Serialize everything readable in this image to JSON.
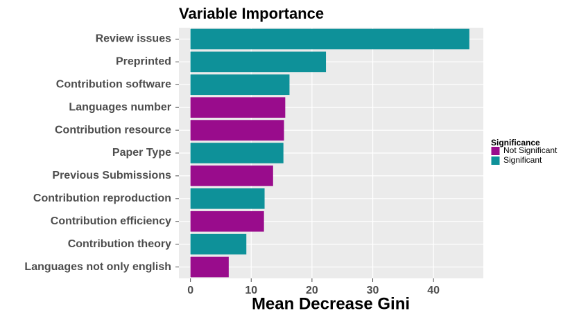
{
  "chart_data": {
    "type": "bar",
    "orientation": "horizontal",
    "title": "Variable Importance",
    "x_label": "Mean Decrease Gini",
    "legend_title": "Significance",
    "legend_position": "right",
    "categories": [
      "Review issues",
      "Preprinted",
      "Contribution software",
      "Languages number",
      "Contribution resource",
      "Paper Type",
      "Previous Submissions",
      "Contribution reproduction",
      "Contribution efficiency",
      "Contribution theory",
      "Languages not only english"
    ],
    "series": [
      {
        "name": "Not Significant",
        "color": "#990c8c",
        "values": [
          null,
          null,
          null,
          15.6,
          15.4,
          null,
          13.6,
          null,
          12.1,
          null,
          6.3
        ]
      },
      {
        "name": "Significant",
        "color": "#0e9199",
        "values": [
          45.9,
          22.3,
          16.3,
          null,
          null,
          15.3,
          null,
          12.2,
          null,
          9.2,
          null
        ]
      }
    ],
    "xlim": [
      -1.9,
      48.2
    ],
    "xticks": [
      0,
      10,
      20,
      30,
      40
    ],
    "grid": true
  }
}
